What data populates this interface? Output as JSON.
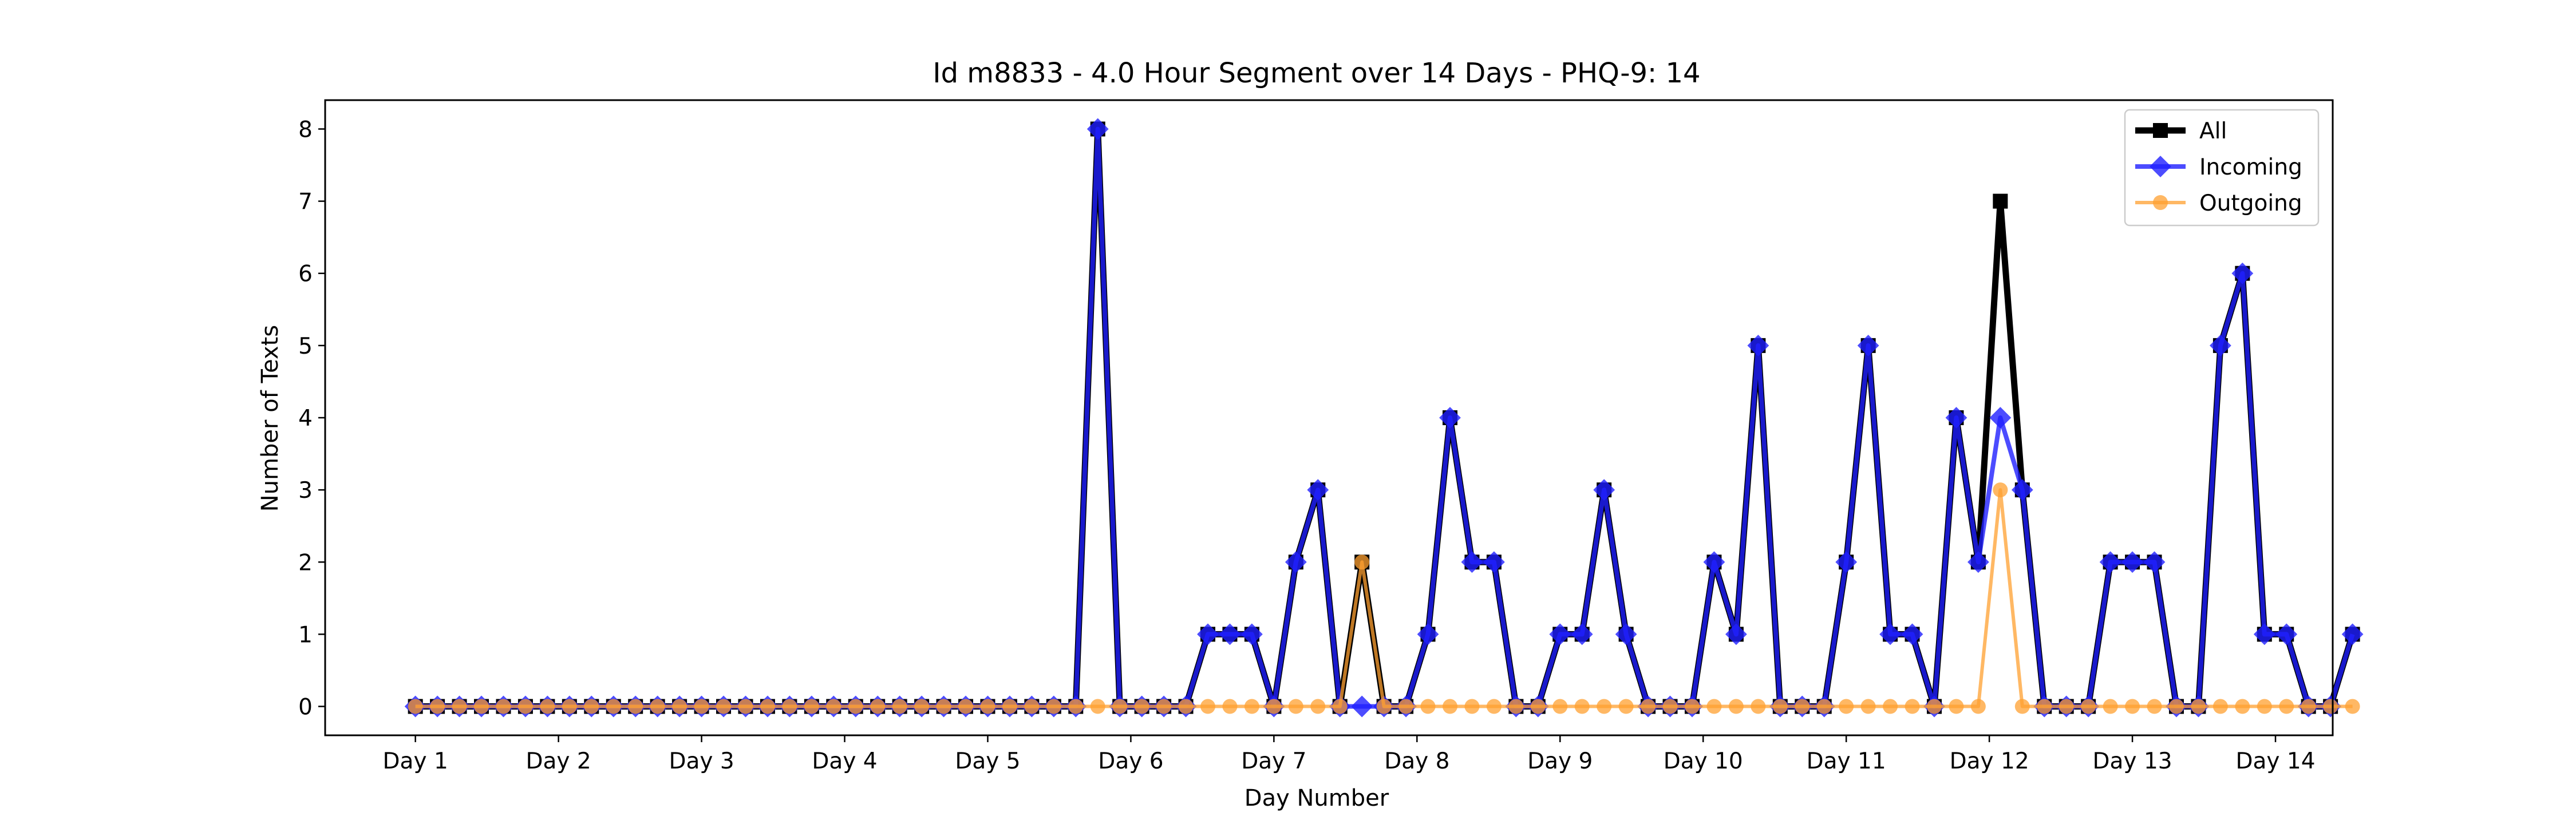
{
  "chart_data": {
    "type": "line",
    "title": "Id m8833 - 4.0 Hour Segment over 14 Days - PHQ-9: 14",
    "xlabel": "Day Number",
    "ylabel": "Number of Texts",
    "x_tick_labels": [
      "Day 1",
      "Day 2",
      "Day 3",
      "Day 4",
      "Day 5",
      "Day 6",
      "Day 7",
      "Day 8",
      "Day 9",
      "Day 10",
      "Day 11",
      "Day 12",
      "Day 13",
      "Day 14"
    ],
    "y_ticks": [
      0,
      1,
      2,
      3,
      4,
      5,
      6,
      7,
      8
    ],
    "xlim": [
      -4.1,
      87.1
    ],
    "ylim": [
      -0.4,
      8.4
    ],
    "legend_position": "top-right",
    "series": [
      {
        "name": "All",
        "color": "#000000",
        "marker": "square",
        "values": [
          0,
          0,
          0,
          0,
          0,
          0,
          0,
          0,
          0,
          0,
          0,
          0,
          0,
          0,
          0,
          0,
          0,
          0,
          0,
          0,
          0,
          0,
          0,
          0,
          0,
          0,
          0,
          0,
          0,
          0,
          0,
          8,
          0,
          0,
          0,
          0,
          1,
          1,
          1,
          0,
          2,
          3,
          0,
          2,
          0,
          0,
          1,
          4,
          2,
          2,
          0,
          0,
          1,
          1,
          3,
          1,
          0,
          0,
          0,
          2,
          1,
          5,
          0,
          0,
          0,
          2,
          5,
          1,
          1,
          0,
          4,
          2,
          7,
          3,
          0,
          0,
          0,
          2,
          2,
          2,
          0,
          0,
          5,
          6,
          1,
          1,
          0,
          0,
          1
        ]
      },
      {
        "name": "Incoming",
        "color": "#1f1fff",
        "marker": "diamond",
        "values": [
          0,
          0,
          0,
          0,
          0,
          0,
          0,
          0,
          0,
          0,
          0,
          0,
          0,
          0,
          0,
          0,
          0,
          0,
          0,
          0,
          0,
          0,
          0,
          0,
          0,
          0,
          0,
          0,
          0,
          0,
          0,
          8,
          0,
          0,
          0,
          0,
          1,
          1,
          1,
          0,
          2,
          3,
          0,
          0,
          0,
          0,
          1,
          4,
          2,
          2,
          0,
          0,
          1,
          1,
          3,
          1,
          0,
          0,
          0,
          2,
          1,
          5,
          0,
          0,
          0,
          2,
          5,
          1,
          1,
          0,
          4,
          2,
          4,
          3,
          0,
          0,
          0,
          2,
          2,
          2,
          0,
          0,
          5,
          6,
          1,
          1,
          0,
          0,
          1
        ]
      },
      {
        "name": "Outgoing",
        "color": "#ffa030",
        "marker": "circle",
        "values": [
          0,
          0,
          0,
          0,
          0,
          0,
          0,
          0,
          0,
          0,
          0,
          0,
          0,
          0,
          0,
          0,
          0,
          0,
          0,
          0,
          0,
          0,
          0,
          0,
          0,
          0,
          0,
          0,
          0,
          0,
          0,
          0,
          0,
          0,
          0,
          0,
          0,
          0,
          0,
          0,
          0,
          0,
          0,
          2,
          0,
          0,
          0,
          0,
          0,
          0,
          0,
          0,
          0,
          0,
          0,
          0,
          0,
          0,
          0,
          0,
          0,
          0,
          0,
          0,
          0,
          0,
          0,
          0,
          0,
          0,
          0,
          0,
          3,
          0,
          0,
          0,
          0,
          0,
          0,
          0,
          0,
          0,
          0,
          0,
          0,
          0,
          0,
          0,
          0
        ]
      }
    ]
  }
}
